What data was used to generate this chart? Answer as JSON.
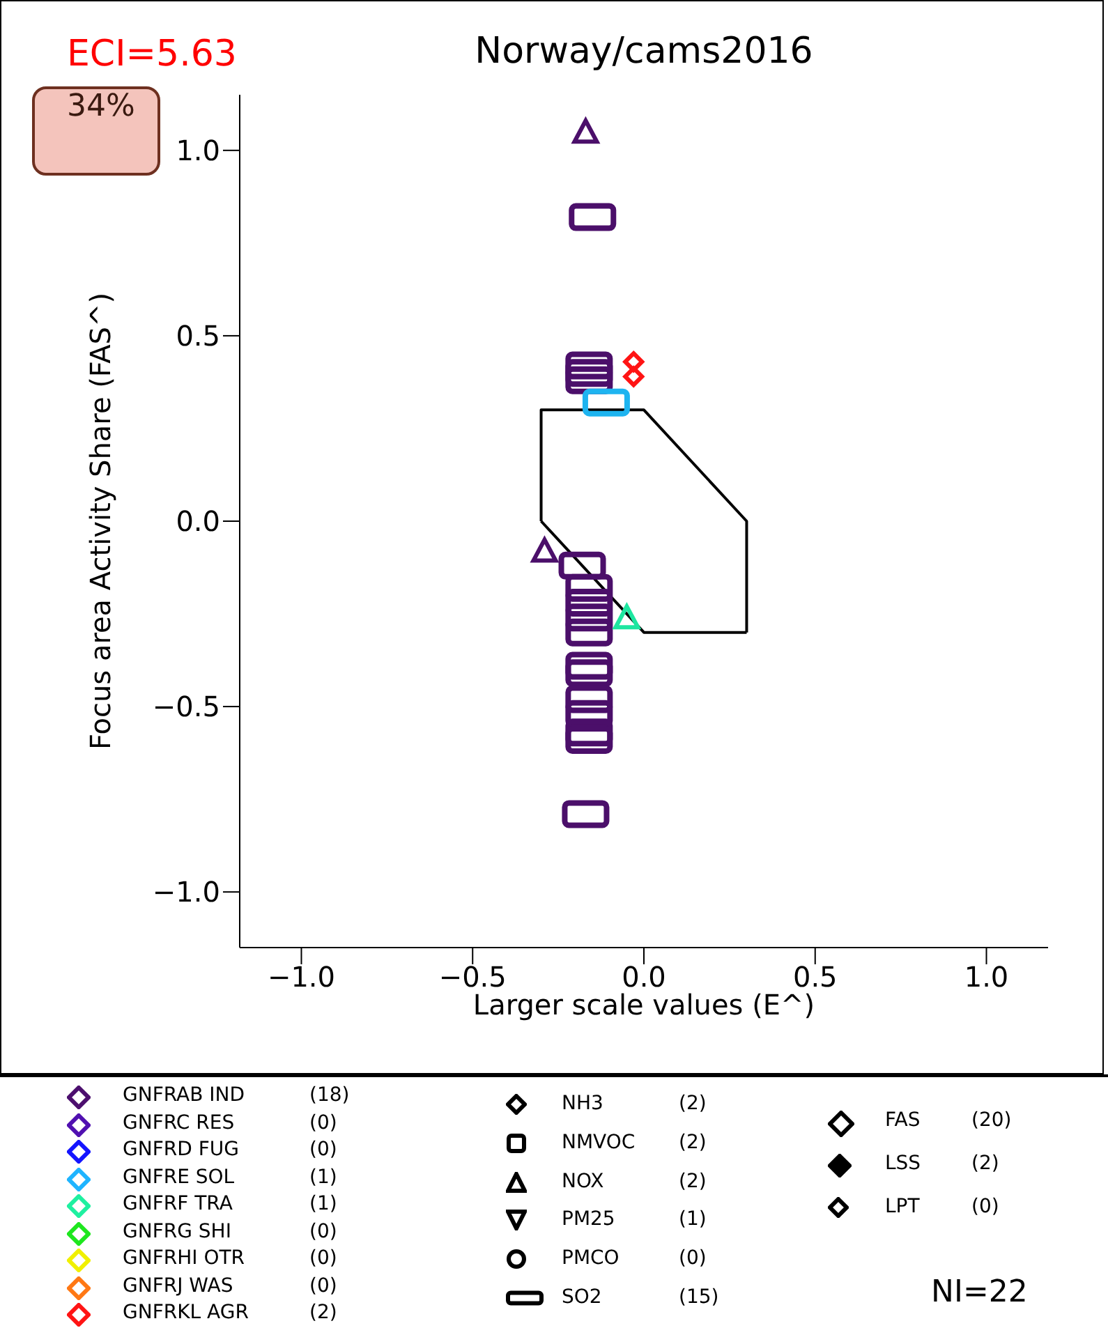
{
  "chart_data": {
    "type": "scatter",
    "title": "Norway/cams2016",
    "xlabel": "Larger scale values (E^)",
    "ylabel": "Focus area Activity Share (FAS^)",
    "xlim": [
      -1.18,
      1.18
    ],
    "xticks": [
      {
        "value": -1.0,
        "label": "−1.0"
      },
      {
        "value": -0.5,
        "label": "−0.5"
      },
      {
        "value": 0.0,
        "label": "0.0"
      },
      {
        "value": 0.5,
        "label": "0.5"
      },
      {
        "value": 1.0,
        "label": "1.0"
      }
    ],
    "ylim": [
      -1.15,
      1.15
    ],
    "yticks": [
      {
        "value": -1.0,
        "label": "−1.0"
      },
      {
        "value": -0.5,
        "label": "−0.5"
      },
      {
        "value": 0.0,
        "label": "0.0"
      },
      {
        "value": 0.5,
        "label": "0.5"
      },
      {
        "value": 1.0,
        "label": "1.0"
      }
    ],
    "grid": false,
    "legend": false,
    "series": [
      {
        "color": "#4b0f6a",
        "marker": "square",
        "x": [
          -0.15,
          -0.16,
          -0.16,
          -0.16,
          -0.16,
          -0.16,
          -0.16,
          -0.16,
          -0.16,
          -0.16,
          -0.16,
          -0.16,
          -0.16,
          -0.16,
          -0.17
        ],
        "values": [
          0.82,
          0.42,
          0.4,
          0.38,
          -0.18,
          -0.22,
          -0.26,
          -0.3,
          -0.39,
          -0.41,
          -0.48,
          -0.52,
          -0.57,
          -0.59,
          -0.79
        ]
      },
      {
        "color": "#4b0f6a",
        "marker": "triangle",
        "x": [
          -0.17
        ],
        "values": [
          1.05
        ]
      },
      {
        "color": "#4b0f6a",
        "marker": "square",
        "x": [
          -0.18
        ],
        "values": [
          -0.12
        ]
      },
      {
        "color": "#4b0f6a",
        "marker": "triangle",
        "x": [
          -0.29
        ],
        "values": [
          -0.08
        ]
      },
      {
        "color": "#1eb4f0",
        "marker": "square",
        "x": [
          -0.11
        ],
        "values": [
          0.32
        ]
      },
      {
        "color": "#1ee6a0",
        "marker": "triangle",
        "x": [
          -0.05
        ],
        "values": [
          -0.26
        ]
      },
      {
        "color": "#ff1414",
        "marker": "diamond",
        "x": [
          -0.03,
          -0.03
        ],
        "values": [
          0.43,
          0.39
        ]
      },
      {
        "type": "line",
        "color": "#000000",
        "marker": "none",
        "x": [
          -0.3,
          -0.3,
          0.0,
          0.3,
          0.3
        ],
        "values": [
          0.0,
          0.3,
          0.3,
          0.0,
          -0.3
        ]
      },
      {
        "type": "line",
        "color": "#000000",
        "marker": "none",
        "x": [
          -0.3,
          0.0,
          0.3
        ],
        "values": [
          0.0,
          -0.3,
          -0.3
        ]
      }
    ],
    "annotations": [
      "ECI=5.63",
      "34%",
      "GNFRAB IND",
      "(18)",
      "GNFRC RES",
      "(0)",
      "GNFRD FUG",
      "(0)",
      "GNFRE SOL",
      "(1)",
      "GNFRF TRA",
      "(1)",
      "GNFRG SHI",
      "(0)",
      "GNFRHI OTR",
      "(0)",
      "GNFRJ WAS",
      "(0)",
      "GNFRKL AGR",
      "(2)",
      "NH3",
      "(2)",
      "NMVOC",
      "(2)",
      "NOX",
      "(2)",
      "PM25",
      "(1)",
      "PMCO",
      "(0)",
      "SO2",
      "(15)",
      "FAS",
      "(20)",
      "LSS",
      "(2)",
      "LPT",
      "(0)",
      "NI=22"
    ]
  }
}
